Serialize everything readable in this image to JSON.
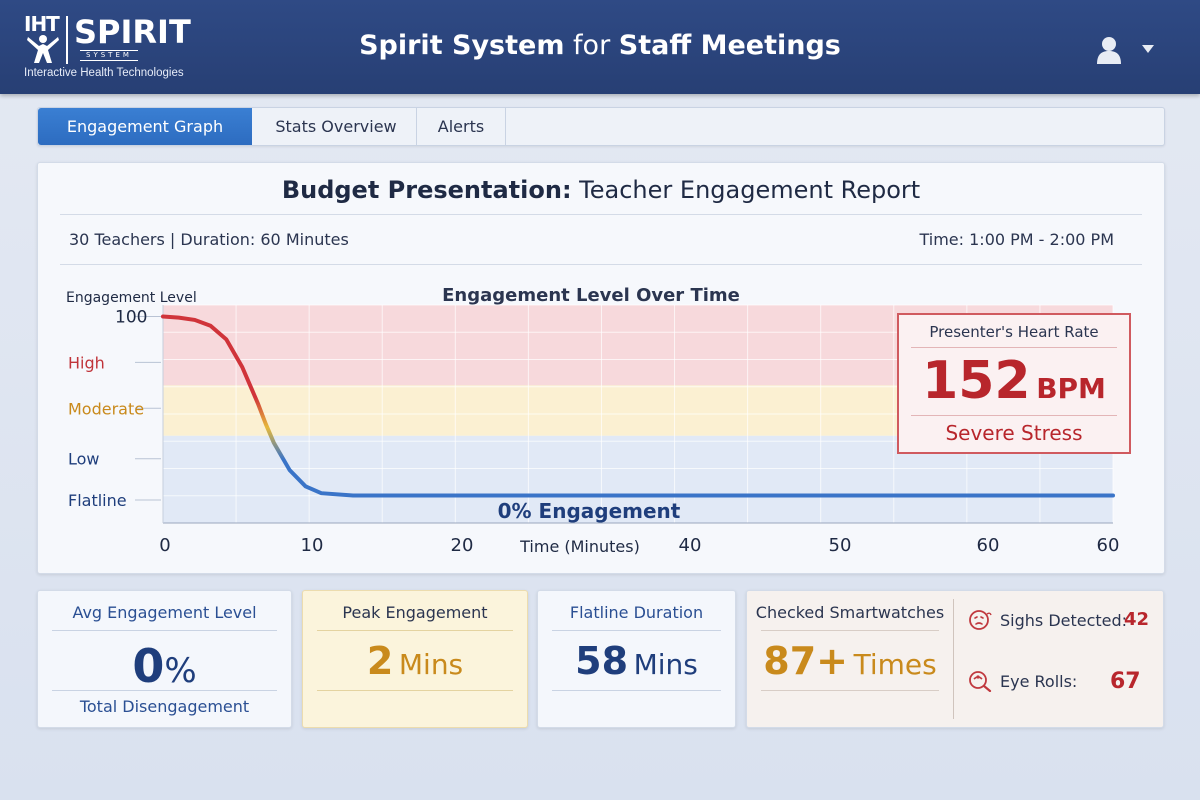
{
  "logo": {
    "iht": "IHT",
    "spirit": "SPIRIT",
    "system": "SYSTEM",
    "tagline": "Interactive Health Technologies"
  },
  "header": {
    "title_bold1": "Spirit System",
    "title_mid": " for ",
    "title_bold2": "Staff Meetings"
  },
  "tabs": [
    {
      "label": "Engagement Graph",
      "active": true
    },
    {
      "label": "Stats Overview",
      "active": false
    },
    {
      "label": "Alerts",
      "active": false
    }
  ],
  "report": {
    "title_bold": "Budget Presentation:",
    "title_rest": " Teacher Engagement Report",
    "meta_left": "30 Teachers | Duration: 60 Minutes",
    "meta_right": "Time: 1:00 PM - 2:00 PM"
  },
  "chart_data": {
    "type": "line",
    "title": "Engagement Level Over Time",
    "ylabel": "Engagement Level",
    "xlabel": "Time (Minutes)",
    "y_tick_labels": [
      {
        "label": "100",
        "value": 100
      },
      {
        "label": "High",
        "value": 80
      },
      {
        "label": "Moderate",
        "value": 60
      },
      {
        "label": "Low",
        "value": 38
      },
      {
        "label": "Flatline",
        "value": 20
      }
    ],
    "x_tick_labels": [
      "0",
      "10",
      "20",
      "40",
      "50",
      "60",
      "60"
    ],
    "ylim": [
      10,
      105
    ],
    "xlim": [
      0,
      60
    ],
    "annotation": "0% Engagement",
    "series": [
      {
        "x": [
          0,
          1,
          2,
          3,
          4,
          5,
          6,
          6.5,
          7,
          8,
          9,
          10,
          12,
          15,
          20,
          30,
          40,
          50,
          60
        ],
        "y": [
          100,
          99.5,
          98.5,
          96,
          90,
          78,
          62,
          53,
          45,
          33,
          26,
          23,
          22,
          22,
          22,
          22,
          22,
          22,
          22
        ]
      }
    ],
    "colors": {
      "high": "#d0343a",
      "moderate": "#e6b93a",
      "low": "#3a74c8"
    }
  },
  "heart_rate": {
    "title": "Presenter's Heart Rate",
    "value": "152",
    "unit": "BPM",
    "status": "Severe Stress"
  },
  "cards": {
    "avg": {
      "title": "Avg Engagement Level",
      "value": "0",
      "unit": "%",
      "sub": "Total Disengagement"
    },
    "peak": {
      "title": "Peak Engagement",
      "value": "2",
      "unit": "Mins"
    },
    "flatline": {
      "title": "Flatline Duration",
      "value": "58",
      "unit": "Mins"
    },
    "smartwatch": {
      "title": "Checked Smartwatches",
      "value": "87+",
      "unit": "Times"
    },
    "sighs": {
      "label": "Sighs Detected:",
      "value": "42"
    },
    "eyerolls": {
      "label": "Eye Rolls:",
      "value": "67"
    }
  }
}
